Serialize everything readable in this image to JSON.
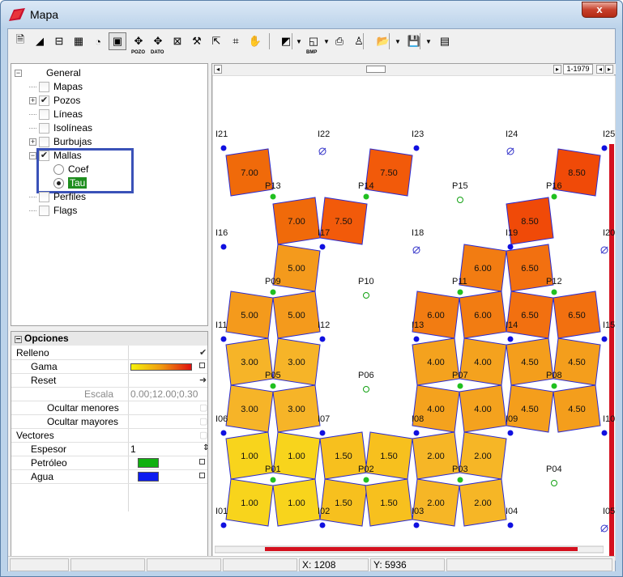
{
  "window": {
    "title": "Mapa",
    "close_glyph": "x"
  },
  "toolbar": {
    "icons": [
      "properties-icon",
      "layers-icon",
      "label-icon",
      "grid-icon",
      "pie-icon",
      "map-icon",
      "pozo-icon",
      "pozo-dato-icon",
      "mesh-icon",
      "tools-icon",
      "pointer-icon",
      "zoom-extent-icon",
      "hand-icon",
      "fill-icon",
      "export-bmp-icon",
      "print-icon",
      "well-icon",
      "open-icon",
      "save-icon",
      "book-icon"
    ],
    "pozo_label": "POZO",
    "dato_label": "DATO",
    "bmp_label": "BMP",
    "range_label": "1-1979"
  },
  "tree": {
    "general": "General",
    "items": [
      {
        "label": "Mapas",
        "checked": false,
        "expandable": false
      },
      {
        "label": "Pozos",
        "checked": true,
        "expandable": true
      },
      {
        "label": "Líneas",
        "checked": false,
        "expandable": false
      },
      {
        "label": "Isolíneas",
        "checked": false,
        "expandable": false
      },
      {
        "label": "Burbujas",
        "checked": false,
        "expandable": true
      },
      {
        "label": "Mallas",
        "checked": true,
        "expandable": true
      },
      {
        "label": "Coef",
        "radio": true,
        "selected": false
      },
      {
        "label": "Tau",
        "radio": true,
        "selected": true
      },
      {
        "label": "Perfiles",
        "checked": false,
        "expandable": false
      },
      {
        "label": "Flags",
        "checked": false,
        "expandable": false
      }
    ]
  },
  "properties": {
    "header": "Opciones",
    "rows": [
      {
        "name": "Relleno",
        "value": "",
        "kind": "check-on"
      },
      {
        "name": "Gama",
        "value": "",
        "kind": "gradient"
      },
      {
        "name": "Reset",
        "value": "",
        "kind": "arrow"
      },
      {
        "name": "Escala",
        "value": "0.00;12.00;0.30",
        "kind": "text-gray"
      },
      {
        "name": "Ocultar menores",
        "value": "",
        "kind": "check-off"
      },
      {
        "name": "Ocultar mayores",
        "value": "",
        "kind": "check-off"
      },
      {
        "name": "Vectores",
        "value": "",
        "kind": "check-off"
      },
      {
        "name": "Espesor",
        "value": "1",
        "kind": "spin"
      },
      {
        "name": "Petróleo",
        "value": "",
        "kind": "color-green"
      },
      {
        "name": "Agua",
        "value": "",
        "kind": "color-blue"
      }
    ]
  },
  "map": {
    "injectors": [
      {
        "label": "I21"
      },
      {
        "label": "I22"
      },
      {
        "label": "I23"
      },
      {
        "label": "I24"
      },
      {
        "label": "I25"
      },
      {
        "label": "I16"
      },
      {
        "label": "I17"
      },
      {
        "label": "I18"
      },
      {
        "label": "I19"
      },
      {
        "label": "I20"
      },
      {
        "label": "I11"
      },
      {
        "label": "I12"
      },
      {
        "label": "I13"
      },
      {
        "label": "I14"
      },
      {
        "label": "I15"
      },
      {
        "label": "I06"
      },
      {
        "label": "I07"
      },
      {
        "label": "I08"
      },
      {
        "label": "I09"
      },
      {
        "label": "I10"
      },
      {
        "label": "I01"
      },
      {
        "label": "I02"
      },
      {
        "label": "I03"
      },
      {
        "label": "I04"
      },
      {
        "label": "I05"
      }
    ],
    "producers": [
      {
        "label": "P13"
      },
      {
        "label": "P14"
      },
      {
        "label": "P15"
      },
      {
        "label": "P16"
      },
      {
        "label": "P09"
      },
      {
        "label": "P10"
      },
      {
        "label": "P11"
      },
      {
        "label": "P12"
      },
      {
        "label": "P05"
      },
      {
        "label": "P06"
      },
      {
        "label": "P07"
      },
      {
        "label": "P08"
      },
      {
        "label": "P01"
      },
      {
        "label": "P02"
      },
      {
        "label": "P03"
      },
      {
        "label": "P04"
      }
    ],
    "cells": [
      {
        "value": "7.00",
        "color": "#f06a0a"
      },
      {
        "value": "7.50",
        "color": "#f25a0a"
      },
      {
        "value": "8.50",
        "color": "#f04a08"
      },
      {
        "value": "7.00",
        "color": "#f06a0a"
      },
      {
        "value": "7.50",
        "color": "#f25a0a"
      },
      {
        "value": "8.50",
        "color": "#f04a08"
      },
      {
        "value": "5.00",
        "color": "#f49a1c"
      },
      {
        "value": "6.00",
        "color": "#f27c12"
      },
      {
        "value": "6.50",
        "color": "#f27010"
      },
      {
        "value": "5.00",
        "color": "#f49a1c"
      },
      {
        "value": "5.00",
        "color": "#f49a1c"
      },
      {
        "value": "6.00",
        "color": "#f27c12"
      },
      {
        "value": "6.00",
        "color": "#f27c12"
      },
      {
        "value": "6.50",
        "color": "#f27010"
      },
      {
        "value": "6.50",
        "color": "#f27010"
      },
      {
        "value": "3.00",
        "color": "#f6b428"
      },
      {
        "value": "3.00",
        "color": "#f6b428"
      },
      {
        "value": "4.00",
        "color": "#f4a21e"
      },
      {
        "value": "4.00",
        "color": "#f4a21e"
      },
      {
        "value": "4.50",
        "color": "#f49e1c"
      },
      {
        "value": "4.50",
        "color": "#f49e1c"
      },
      {
        "value": "3.00",
        "color": "#f6b428"
      },
      {
        "value": "3.00",
        "color": "#f6b428"
      },
      {
        "value": "4.00",
        "color": "#f4a21e"
      },
      {
        "value": "4.00",
        "color": "#f4a21e"
      },
      {
        "value": "4.50",
        "color": "#f49e1c"
      },
      {
        "value": "4.50",
        "color": "#f49e1c"
      },
      {
        "value": "1.00",
        "color": "#f8d41c"
      },
      {
        "value": "1.00",
        "color": "#f8d41c"
      },
      {
        "value": "1.50",
        "color": "#f7c01e"
      },
      {
        "value": "1.50",
        "color": "#f7c01e"
      },
      {
        "value": "2.00",
        "color": "#f6b626"
      },
      {
        "value": "2.00",
        "color": "#f6b626"
      },
      {
        "value": "1.00",
        "color": "#f8d41c"
      },
      {
        "value": "1.00",
        "color": "#f8d41c"
      },
      {
        "value": "1.50",
        "color": "#f7c01e"
      },
      {
        "value": "1.50",
        "color": "#f7c01e"
      },
      {
        "value": "2.00",
        "color": "#f6b626"
      },
      {
        "value": "2.00",
        "color": "#f6b626"
      }
    ]
  },
  "status": {
    "x": "X: 1208",
    "y": "Y: 5936"
  }
}
